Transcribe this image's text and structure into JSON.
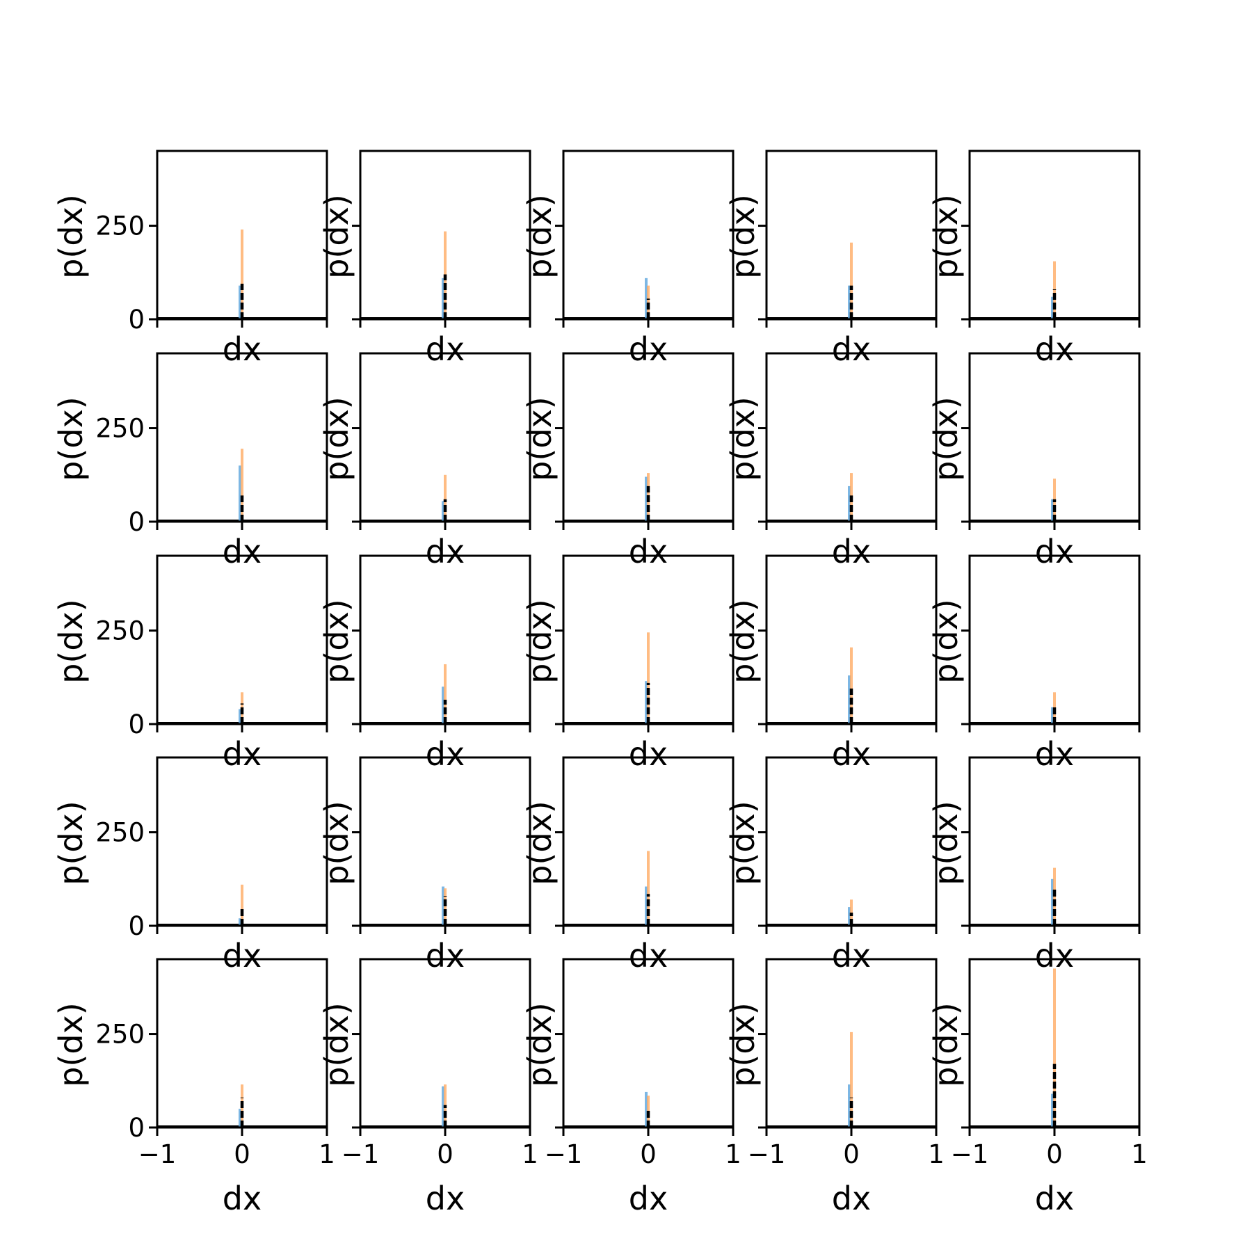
{
  "colors": {
    "hist_a": "#5da5dd",
    "hist_b": "#ffa55a",
    "dashed": "#000000",
    "frame": "#000000",
    "background": "#ffffff"
  },
  "chart_data": {
    "type": "histogram-grid",
    "rows": 5,
    "cols": 5,
    "xlabel": "dx",
    "ylabel": "p(dx)",
    "xlim": [
      -1,
      1
    ],
    "ylim": [
      0,
      450
    ],
    "xticks": [
      -1,
      0,
      1
    ],
    "xtick_labels": [
      "−1",
      "0",
      "1"
    ],
    "yticks": [
      0,
      250
    ],
    "ytick_labels": [
      "0",
      "250"
    ],
    "grid": false,
    "legend": "none",
    "panels": [
      {
        "row": 0,
        "col": 0,
        "a": 90,
        "b": 240,
        "d": 95
      },
      {
        "row": 0,
        "col": 1,
        "a": 110,
        "b": 235,
        "d": 120
      },
      {
        "row": 0,
        "col": 2,
        "a": 110,
        "b": 90,
        "d": 55
      },
      {
        "row": 0,
        "col": 3,
        "a": 90,
        "b": 205,
        "d": 90
      },
      {
        "row": 0,
        "col": 4,
        "a": 60,
        "b": 155,
        "d": 80
      },
      {
        "row": 1,
        "col": 0,
        "a": 150,
        "b": 195,
        "d": 70
      },
      {
        "row": 1,
        "col": 1,
        "a": 55,
        "b": 125,
        "d": 60
      },
      {
        "row": 1,
        "col": 2,
        "a": 120,
        "b": 130,
        "d": 95
      },
      {
        "row": 1,
        "col": 3,
        "a": 95,
        "b": 130,
        "d": 70
      },
      {
        "row": 1,
        "col": 4,
        "a": 60,
        "b": 115,
        "d": 60
      },
      {
        "row": 2,
        "col": 0,
        "a": 40,
        "b": 85,
        "d": 55
      },
      {
        "row": 2,
        "col": 1,
        "a": 100,
        "b": 160,
        "d": 65
      },
      {
        "row": 2,
        "col": 2,
        "a": 115,
        "b": 245,
        "d": 110
      },
      {
        "row": 2,
        "col": 3,
        "a": 130,
        "b": 205,
        "d": 95
      },
      {
        "row": 2,
        "col": 4,
        "a": 45,
        "b": 85,
        "d": 45
      },
      {
        "row": 3,
        "col": 0,
        "a": 20,
        "b": 110,
        "d": 50
      },
      {
        "row": 3,
        "col": 1,
        "a": 105,
        "b": 100,
        "d": 80
      },
      {
        "row": 3,
        "col": 2,
        "a": 105,
        "b": 200,
        "d": 85
      },
      {
        "row": 3,
        "col": 3,
        "a": 50,
        "b": 70,
        "d": 35
      },
      {
        "row": 3,
        "col": 4,
        "a": 125,
        "b": 155,
        "d": 100
      },
      {
        "row": 4,
        "col": 0,
        "a": 50,
        "b": 115,
        "d": 80
      },
      {
        "row": 4,
        "col": 1,
        "a": 110,
        "b": 115,
        "d": 60
      },
      {
        "row": 4,
        "col": 2,
        "a": 95,
        "b": 85,
        "d": 45
      },
      {
        "row": 4,
        "col": 3,
        "a": 115,
        "b": 255,
        "d": 80
      },
      {
        "row": 4,
        "col": 4,
        "a": 90,
        "b": 425,
        "d": 170
      }
    ]
  }
}
